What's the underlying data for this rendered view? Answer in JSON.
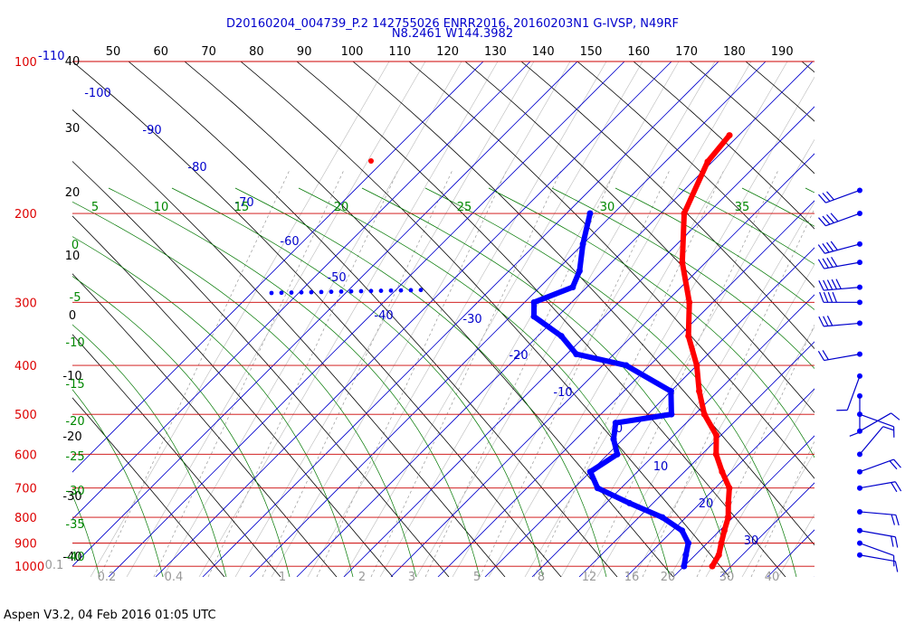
{
  "header": {
    "line1": "D20160204_004739_P.2 142755026 ENRR2016, 20160203N1 G-IVSP, N49RF",
    "line2": "N8.2461 W144.3982"
  },
  "footer": {
    "text": "Aspen V3.2, 04 Feb 2016  01:05 UTC"
  },
  "chart_data": {
    "type": "skew-t",
    "pressure_ticks": [
      "100",
      "200",
      "300",
      "400",
      "500",
      "600",
      "700",
      "800",
      "900",
      "1000"
    ],
    "top_extra_label": "-110",
    "theta_ticks": [
      "50",
      "60",
      "70",
      "80",
      "90",
      "100",
      "110",
      "120",
      "130",
      "140",
      "150",
      "160",
      "170",
      "180",
      "190"
    ],
    "height_ticks": [
      "40",
      "30",
      "20",
      "10",
      "0",
      "-10",
      "-20",
      "-30",
      "-40"
    ],
    "isotherm_labels": [
      "-100",
      "-90",
      "-80",
      "-70",
      "-60",
      "-50",
      "-40",
      "-30",
      "-20",
      "-10",
      "0",
      "10",
      "20",
      "30"
    ],
    "theta_e_labels": [
      "5",
      "10",
      "15",
      "20",
      "25",
      "30",
      "35"
    ],
    "mixing_ratio_labels": [
      "0",
      "-5",
      "-10",
      "-15",
      "-20",
      "-25",
      "-30",
      "-35",
      "-40"
    ],
    "bottom_scale_labels": [
      "0.1",
      "0.2",
      "0.4",
      "1",
      "2",
      "3",
      "5",
      "8",
      "12",
      "16",
      "20",
      "30",
      "40"
    ],
    "colors": {
      "temperature": "#ff0000",
      "dewpoint": "#0000ff",
      "isobar": "#cc0000",
      "isotherm": "#0000cc",
      "adiabat": "#000000",
      "moist": "#007700",
      "mixing": "#999999"
    },
    "temperature": [
      {
        "p": 140,
        "t": -62
      },
      {
        "p": 158,
        "t": -61
      },
      {
        "p": 200,
        "t": -55
      },
      {
        "p": 250,
        "t": -45
      },
      {
        "p": 300,
        "t": -35
      },
      {
        "p": 350,
        "t": -28
      },
      {
        "p": 400,
        "t": -20
      },
      {
        "p": 450,
        "t": -14
      },
      {
        "p": 500,
        "t": -8
      },
      {
        "p": 550,
        "t": -1
      },
      {
        "p": 600,
        "t": 3
      },
      {
        "p": 650,
        "t": 8
      },
      {
        "p": 700,
        "t": 13
      },
      {
        "p": 750,
        "t": 16
      },
      {
        "p": 800,
        "t": 19
      },
      {
        "p": 850,
        "t": 21
      },
      {
        "p": 900,
        "t": 23
      },
      {
        "p": 950,
        "t": 25
      },
      {
        "p": 1000,
        "t": 26
      }
    ],
    "dewpoint": [
      {
        "p": 200,
        "t": -75
      },
      {
        "p": 230,
        "t": -70
      },
      {
        "p": 260,
        "t": -65
      },
      {
        "p": 280,
        "t": -63
      },
      {
        "p": 300,
        "t": -68
      },
      {
        "p": 320,
        "t": -65
      },
      {
        "p": 350,
        "t": -55
      },
      {
        "p": 380,
        "t": -48
      },
      {
        "p": 400,
        "t": -35
      },
      {
        "p": 450,
        "t": -20
      },
      {
        "p": 500,
        "t": -15
      },
      {
        "p": 520,
        "t": -25
      },
      {
        "p": 560,
        "t": -22
      },
      {
        "p": 600,
        "t": -18
      },
      {
        "p": 650,
        "t": -20
      },
      {
        "p": 700,
        "t": -15
      },
      {
        "p": 750,
        "t": -5
      },
      {
        "p": 800,
        "t": 5
      },
      {
        "p": 850,
        "t": 12
      },
      {
        "p": 900,
        "t": 16
      },
      {
        "p": 950,
        "t": 18
      },
      {
        "p": 1000,
        "t": 20
      }
    ],
    "wind_barbs": [
      {
        "p": 180,
        "dir": 250,
        "kt": 30
      },
      {
        "p": 200,
        "dir": 250,
        "kt": 35
      },
      {
        "p": 230,
        "dir": 255,
        "kt": 35
      },
      {
        "p": 250,
        "dir": 260,
        "kt": 40
      },
      {
        "p": 280,
        "dir": 265,
        "kt": 45
      },
      {
        "p": 300,
        "dir": 270,
        "kt": 35
      },
      {
        "p": 330,
        "dir": 265,
        "kt": 25
      },
      {
        "p": 380,
        "dir": 260,
        "kt": 20
      },
      {
        "p": 420,
        "dir": 200,
        "kt": 5
      },
      {
        "p": 460,
        "dir": 180,
        "kt": 10
      },
      {
        "p": 500,
        "dir": 110,
        "kt": 10
      },
      {
        "p": 540,
        "dir": 60,
        "kt": 10
      },
      {
        "p": 600,
        "dir": 40,
        "kt": 10
      },
      {
        "p": 650,
        "dir": 70,
        "kt": 15
      },
      {
        "p": 700,
        "dir": 80,
        "kt": 15
      },
      {
        "p": 780,
        "dir": 95,
        "kt": 15
      },
      {
        "p": 850,
        "dir": 100,
        "kt": 15
      },
      {
        "p": 900,
        "dir": 110,
        "kt": 10
      },
      {
        "p": 950,
        "dir": 100,
        "kt": 10
      }
    ]
  }
}
